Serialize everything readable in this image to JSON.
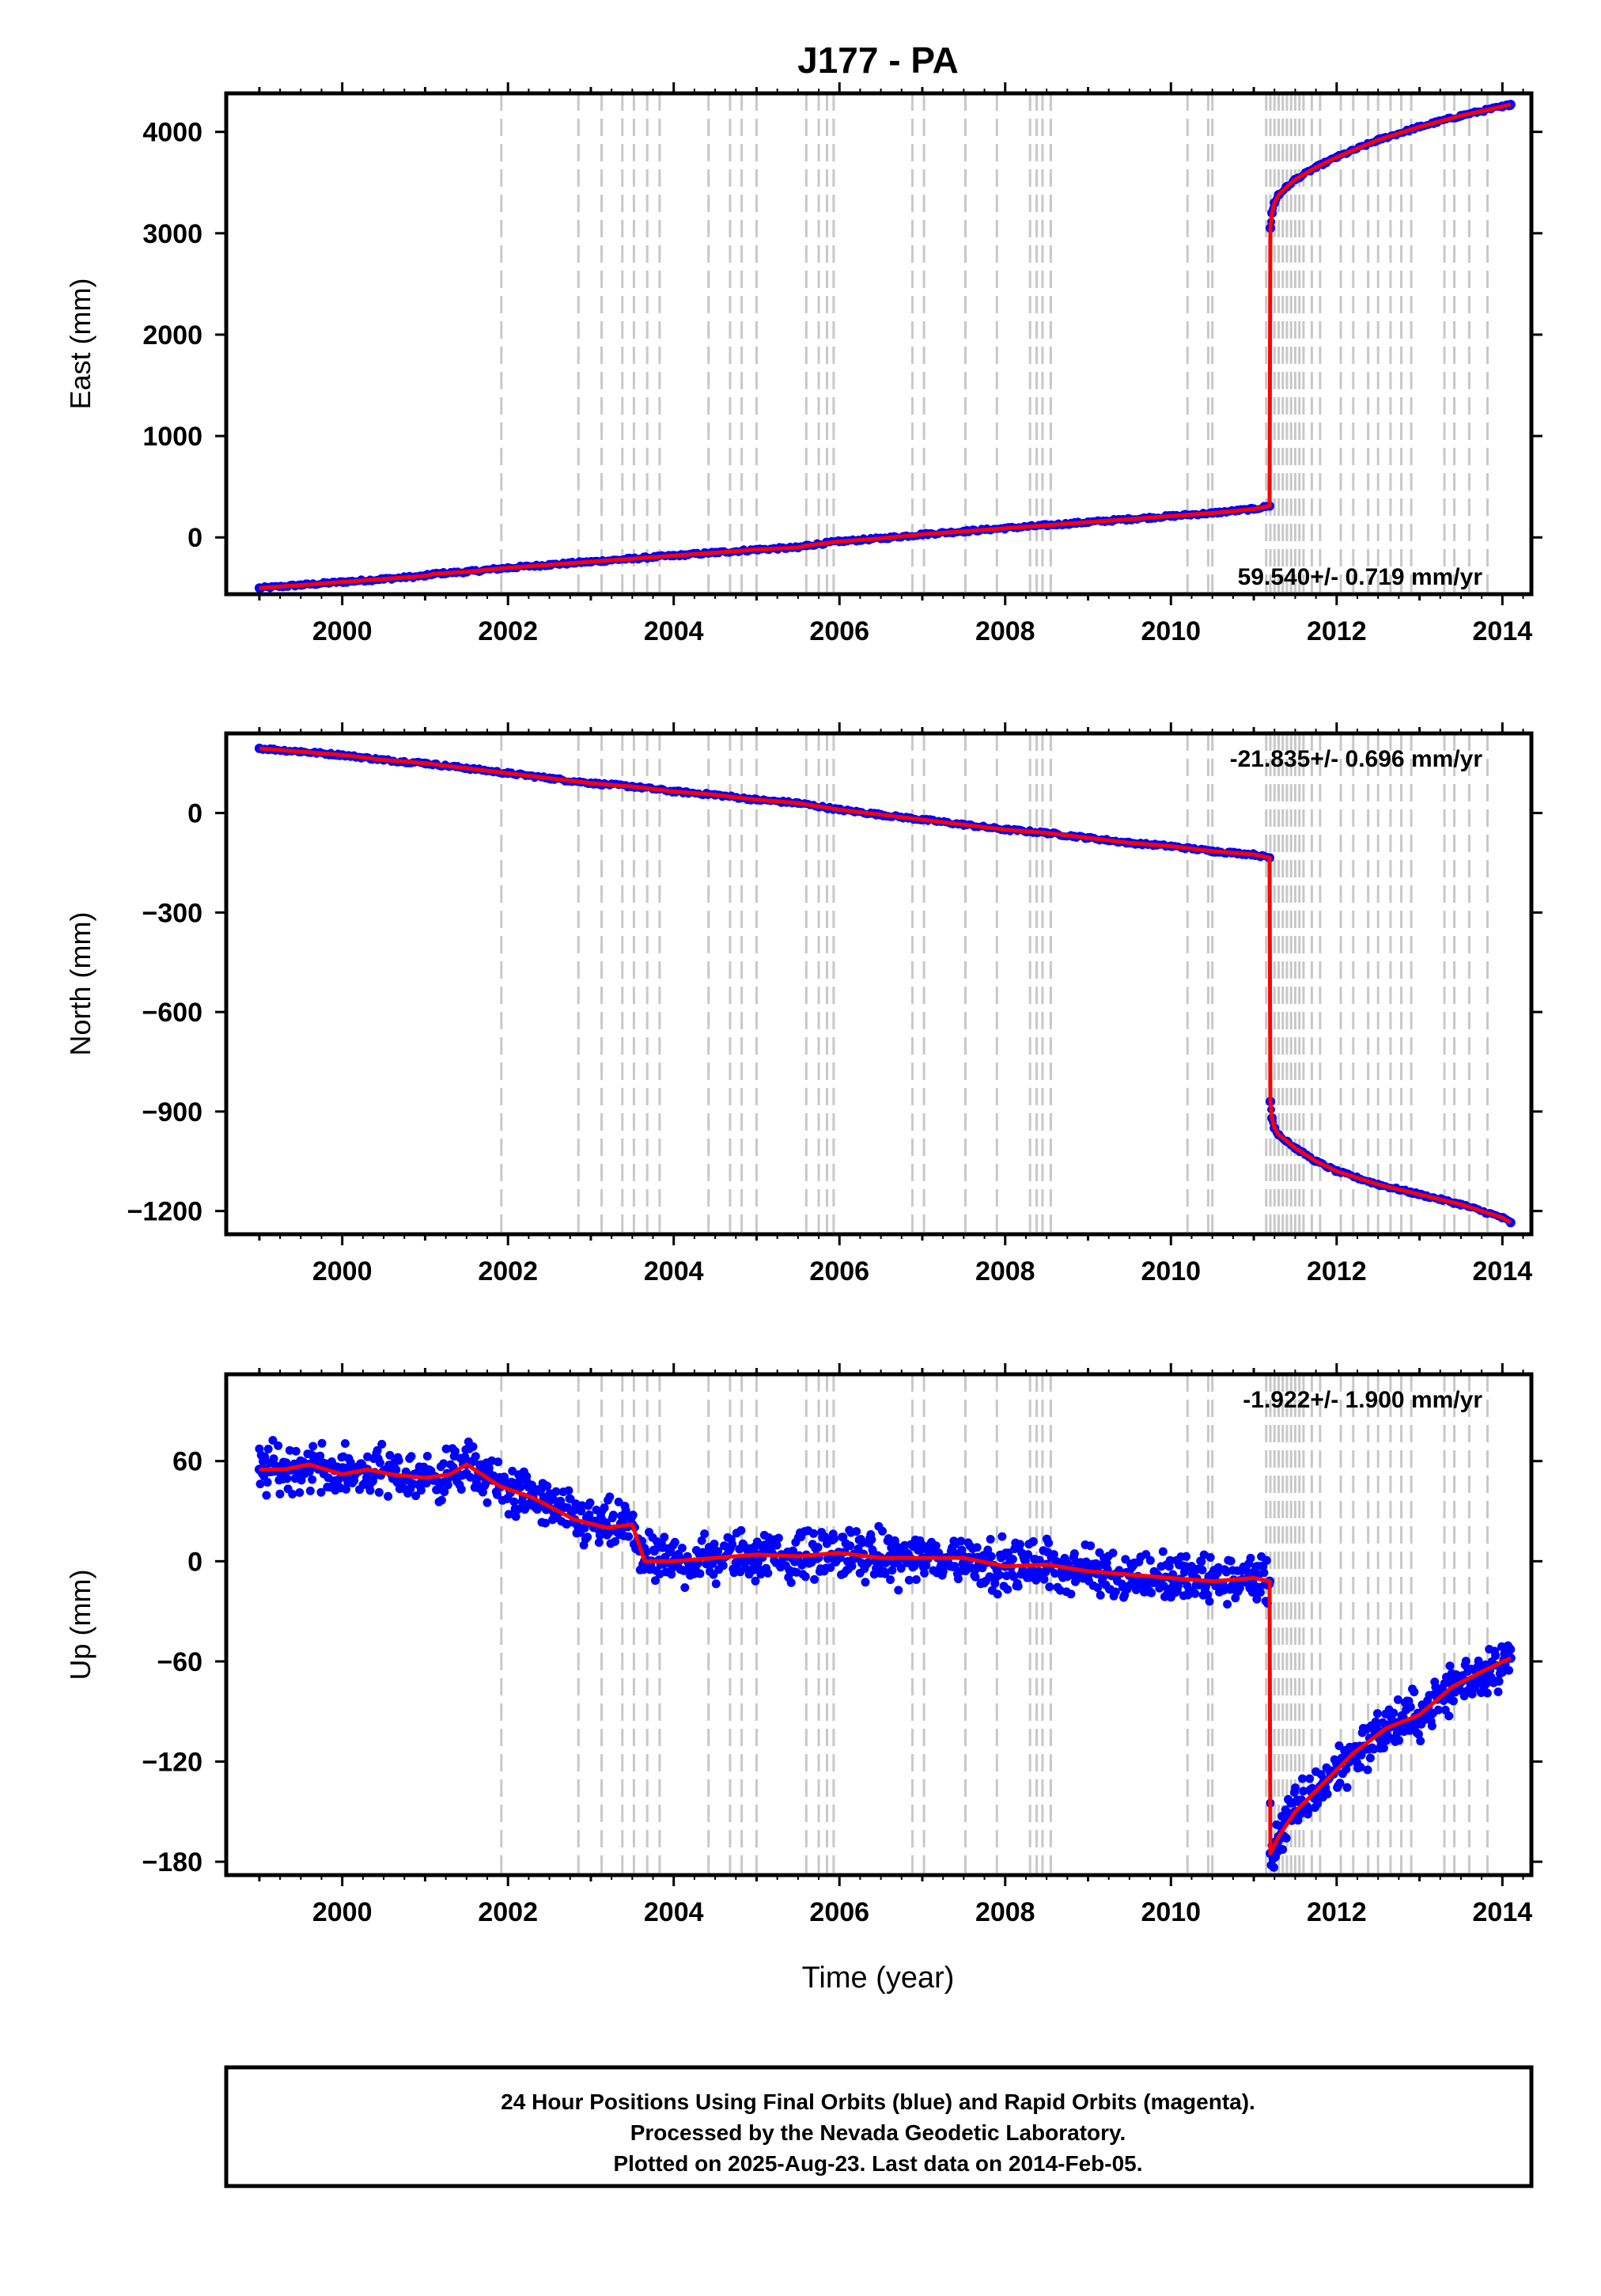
{
  "title": "J177 - PA",
  "x_axis_label": "Time (year)",
  "footer": {
    "line1": "24 Hour Positions Using Final Orbits (blue) and Rapid Orbits (magenta).",
    "line2": "Processed by the Nevada Geodetic Laboratory.",
    "line3": "Plotted on 2025-Aug-23. Last data on 2014-Feb-05."
  },
  "colors": {
    "data_points": "#0000ff",
    "model_line": "#ff0000",
    "event_lines": "#c8c8c8",
    "frame": "#000000"
  },
  "event_lines": [
    2001.92,
    2002.85,
    2003.13,
    2003.38,
    2003.52,
    2003.68,
    2003.83,
    2004.42,
    2004.68,
    2004.82,
    2005.0,
    2005.6,
    2005.75,
    2005.85,
    2005.93,
    2006.88,
    2007.02,
    2007.52,
    2007.9,
    2008.3,
    2008.38,
    2008.45,
    2008.55,
    2010.2,
    2010.45,
    2010.5,
    2011.15,
    2011.2,
    2011.25,
    2011.3,
    2011.35,
    2011.4,
    2011.45,
    2011.5,
    2011.55,
    2011.6,
    2011.7,
    2011.8,
    2012.05,
    2012.2,
    2012.38,
    2012.5,
    2012.65,
    2012.78,
    2012.9,
    2013.3,
    2013.42,
    2013.6,
    2013.82
  ],
  "chart_data": [
    {
      "type": "scatter",
      "ylabel": "East (mm)",
      "xlim": [
        1998.6,
        2014.35
      ],
      "ylim": [
        -560,
        4380
      ],
      "xticks": [
        2000,
        2002,
        2004,
        2006,
        2008,
        2010,
        2012,
        2014
      ],
      "yticks": [
        0,
        1000,
        2000,
        3000,
        4000
      ],
      "ytick_labels": [
        "0",
        "1000",
        "2000",
        "3000",
        "4000"
      ],
      "x_tick_labels": [
        "2000",
        "2002",
        "2004",
        "2006",
        "2008",
        "2010",
        "2012",
        "2014"
      ],
      "rate_label": "59.540+/- 0.719 mm/yr",
      "rate_position": "bottom-right",
      "series": [
        {
          "kind": "points",
          "color": "#0000ff",
          "x": [
            1999.0,
            1999.5,
            2000.0,
            2000.5,
            2001.0,
            2001.1,
            2001.5,
            2002.0,
            2002.5,
            2003.0,
            2003.5,
            2004.0,
            2004.5,
            2005.0,
            2005.5,
            2005.6,
            2006.0,
            2006.5,
            2007.0,
            2007.5,
            2008.0,
            2008.5,
            2009.0,
            2009.5,
            2010.0,
            2010.5,
            2011.0,
            2011.19,
            2011.2,
            2011.22,
            2011.25,
            2011.3,
            2011.4,
            2011.5,
            2011.75,
            2012.0,
            2012.5,
            2013.0,
            2013.5,
            2014.0,
            2014.1
          ],
          "y": [
            -500,
            -470,
            -440,
            -410,
            -380,
            -360,
            -340,
            -300,
            -270,
            -240,
            -210,
            -180,
            -150,
            -120,
            -100,
            -80,
            -40,
            -10,
            30,
            60,
            90,
            120,
            150,
            180,
            210,
            240,
            280,
            310,
            3050,
            3200,
            3300,
            3380,
            3460,
            3530,
            3650,
            3750,
            3920,
            4050,
            4160,
            4250,
            4270
          ]
        },
        {
          "kind": "line",
          "color": "#ff0000",
          "x": [
            1999.0,
            1999.5,
            2000.0,
            2000.5,
            2001.0,
            2001.1,
            2001.5,
            2002.0,
            2002.5,
            2003.0,
            2003.5,
            2004.0,
            2004.5,
            2005.0,
            2005.5,
            2005.6,
            2006.0,
            2006.5,
            2007.0,
            2007.5,
            2008.0,
            2008.5,
            2009.0,
            2009.5,
            2010.0,
            2010.5,
            2011.0,
            2011.19,
            2011.2,
            2011.22,
            2011.25,
            2011.3,
            2011.4,
            2011.5,
            2011.75,
            2012.0,
            2012.5,
            2013.0,
            2013.5,
            2014.0,
            2014.1
          ],
          "y": [
            -500,
            -470,
            -440,
            -410,
            -380,
            -360,
            -340,
            -300,
            -270,
            -240,
            -210,
            -180,
            -150,
            -120,
            -100,
            -80,
            -40,
            -10,
            30,
            60,
            90,
            120,
            150,
            180,
            210,
            240,
            280,
            310,
            3050,
            3200,
            3300,
            3380,
            3460,
            3530,
            3650,
            3750,
            3920,
            4050,
            4160,
            4250,
            4270
          ]
        }
      ]
    },
    {
      "type": "scatter",
      "ylabel": "North (mm)",
      "xlim": [
        1998.6,
        2014.35
      ],
      "ylim": [
        -1270,
        240
      ],
      "xticks": [
        2000,
        2002,
        2004,
        2006,
        2008,
        2010,
        2012,
        2014
      ],
      "yticks": [
        -1200,
        -900,
        -600,
        -300,
        0
      ],
      "ytick_labels": [
        "−1200",
        "−900",
        "−600",
        "−300",
        "0"
      ],
      "x_tick_labels": [
        "2000",
        "2002",
        "2004",
        "2006",
        "2008",
        "2010",
        "2012",
        "2014"
      ],
      "rate_label": "-21.835+/- 0.696 mm/yr",
      "rate_position": "top-right",
      "series": [
        {
          "kind": "points",
          "color": "#0000ff",
          "x": [
            1999.0,
            1999.5,
            2000.0,
            2000.5,
            2001.0,
            2001.5,
            2002.0,
            2002.5,
            2003.0,
            2003.5,
            2004.0,
            2004.5,
            2005.0,
            2005.5,
            2006.0,
            2006.5,
            2007.0,
            2007.5,
            2008.0,
            2008.5,
            2009.0,
            2009.5,
            2010.0,
            2010.5,
            2011.0,
            2011.19,
            2011.2,
            2011.22,
            2011.25,
            2011.3,
            2011.4,
            2011.5,
            2011.75,
            2012.0,
            2012.5,
            2013.0,
            2013.5,
            2014.0,
            2014.1
          ],
          "y": [
            195,
            185,
            175,
            160,
            150,
            135,
            120,
            105,
            90,
            80,
            65,
            55,
            40,
            30,
            10,
            -5,
            -20,
            -35,
            -50,
            -60,
            -75,
            -90,
            -100,
            -115,
            -125,
            -135,
            -870,
            -920,
            -950,
            -970,
            -990,
            -1010,
            -1050,
            -1080,
            -1120,
            -1150,
            -1180,
            -1220,
            -1235
          ]
        },
        {
          "kind": "line",
          "color": "#ff0000",
          "x": [
            1999.0,
            1999.5,
            2000.0,
            2000.5,
            2001.0,
            2001.5,
            2002.0,
            2002.5,
            2003.0,
            2003.5,
            2004.0,
            2004.5,
            2005.0,
            2005.5,
            2006.0,
            2006.5,
            2007.0,
            2007.5,
            2008.0,
            2008.5,
            2009.0,
            2009.5,
            2010.0,
            2010.5,
            2011.0,
            2011.19,
            2011.2,
            2011.22,
            2011.25,
            2011.3,
            2011.4,
            2011.5,
            2011.75,
            2012.0,
            2012.5,
            2013.0,
            2013.5,
            2014.0,
            2014.1
          ],
          "y": [
            195,
            185,
            175,
            160,
            150,
            135,
            120,
            105,
            90,
            80,
            65,
            55,
            40,
            30,
            10,
            -5,
            -20,
            -35,
            -50,
            -60,
            -75,
            -90,
            -100,
            -115,
            -125,
            -135,
            -870,
            -920,
            -950,
            -970,
            -990,
            -1010,
            -1050,
            -1080,
            -1120,
            -1150,
            -1180,
            -1220,
            -1235
          ]
        }
      ]
    },
    {
      "type": "scatter",
      "ylabel": "Up (mm)",
      "xlim": [
        1998.6,
        2014.35
      ],
      "ylim": [
        -188,
        112
      ],
      "xticks": [
        2000,
        2002,
        2004,
        2006,
        2008,
        2010,
        2012,
        2014
      ],
      "yticks": [
        -180,
        -120,
        -60,
        0,
        60
      ],
      "ytick_labels": [
        "−180",
        "−120",
        "−60",
        "0",
        "60"
      ],
      "x_tick_labels": [
        "2000",
        "2002",
        "2004",
        "2006",
        "2008",
        "2010",
        "2012",
        "2014"
      ],
      "rate_label": "-1.922+/- 1.900 mm/yr",
      "rate_position": "top-right",
      "series": [
        {
          "kind": "points",
          "color": "#0000ff",
          "scatter": 12,
          "x": [
            1999.0,
            1999.3,
            1999.6,
            2000.0,
            2000.3,
            2000.6,
            2001.0,
            2001.3,
            2001.5,
            2001.9,
            2002.3,
            2002.8,
            2003.2,
            2003.5,
            2003.65,
            2004.0,
            2004.5,
            2005.0,
            2005.5,
            2006.0,
            2006.5,
            2007.0,
            2007.5,
            2008.0,
            2008.5,
            2009.0,
            2009.5,
            2010.0,
            2010.5,
            2011.0,
            2011.19,
            2011.2,
            2011.3,
            2011.5,
            2011.8,
            2012.2,
            2012.6,
            2013.0,
            2013.4,
            2013.8,
            2014.1
          ],
          "y": [
            55,
            55,
            58,
            52,
            55,
            52,
            50,
            52,
            58,
            45,
            38,
            25,
            20,
            22,
            0,
            0,
            2,
            4,
            3,
            5,
            2,
            2,
            2,
            -3,
            -2,
            -6,
            -8,
            -10,
            -12,
            -10,
            -12,
            -175,
            -165,
            -150,
            -135,
            -115,
            -100,
            -92,
            -75,
            -65,
            -58
          ]
        },
        {
          "kind": "line",
          "color": "#ff0000",
          "x": [
            1999.0,
            1999.3,
            1999.6,
            2000.0,
            2000.3,
            2000.6,
            2001.0,
            2001.3,
            2001.5,
            2001.9,
            2002.3,
            2002.8,
            2003.2,
            2003.5,
            2003.65,
            2004.0,
            2004.5,
            2005.0,
            2005.5,
            2006.0,
            2006.5,
            2007.0,
            2007.5,
            2008.0,
            2008.5,
            2009.0,
            2009.5,
            2010.0,
            2010.5,
            2011.0,
            2011.19,
            2011.2,
            2011.3,
            2011.5,
            2011.8,
            2012.2,
            2012.6,
            2013.0,
            2013.4,
            2013.8,
            2014.1
          ],
          "y": [
            55,
            55,
            58,
            52,
            55,
            52,
            50,
            52,
            58,
            45,
            38,
            25,
            20,
            22,
            0,
            0,
            2,
            4,
            3,
            5,
            2,
            2,
            2,
            -3,
            -2,
            -6,
            -8,
            -10,
            -12,
            -10,
            -12,
            -175,
            -165,
            -150,
            -135,
            -115,
            -100,
            -92,
            -75,
            -65,
            -58
          ]
        }
      ]
    }
  ]
}
